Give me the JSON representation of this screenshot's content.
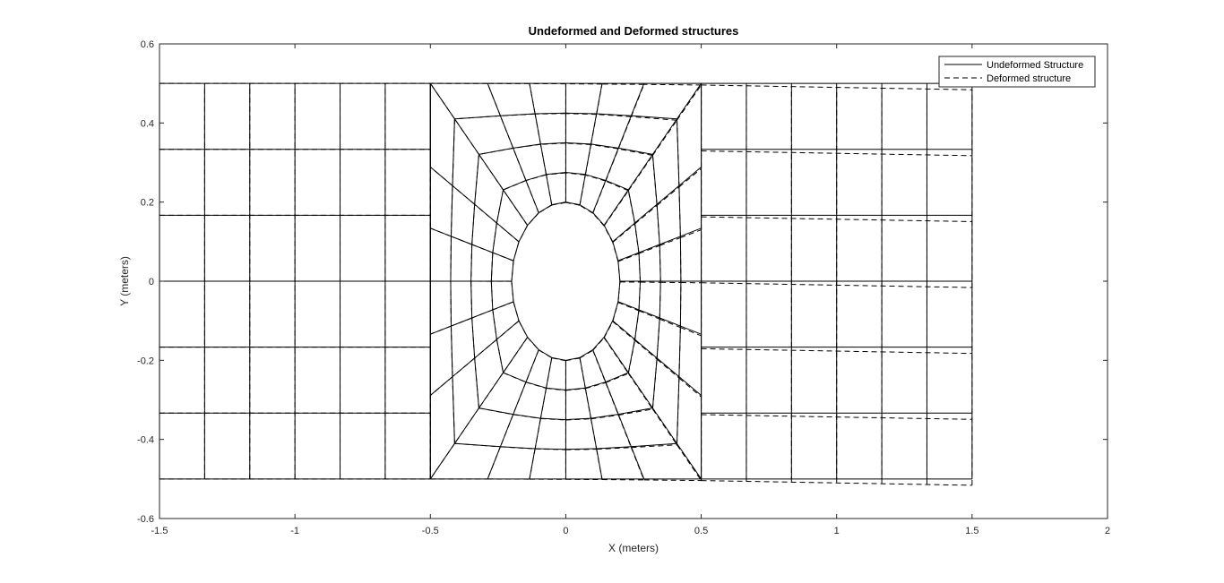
{
  "chart_data": {
    "type": "line",
    "title": "Undeformed and Deformed structures",
    "xlabel": "X (meters)",
    "ylabel": "Y (meters)",
    "xlim": [
      -1.5,
      2
    ],
    "ylim": [
      -0.6,
      0.6
    ],
    "xticks": [
      -1.5,
      -1,
      -0.5,
      0,
      0.5,
      1,
      1.5,
      2
    ],
    "yticks": [
      -0.6,
      -0.4,
      -0.2,
      0,
      0.2,
      0.4,
      0.6
    ],
    "xtick_labels": [
      "-1.5",
      "-1",
      "-0.5",
      "0",
      "0.5",
      "1",
      "1.5",
      "2"
    ],
    "ytick_labels": [
      "-0.6",
      "-0.4",
      "-0.2",
      "0",
      "0.2",
      "0.4",
      "0.6"
    ],
    "grid": false,
    "legend_position": "top-right",
    "series": [
      {
        "name": "Undeformed Structure",
        "style": "solid",
        "color": "#000000"
      },
      {
        "name": "Deformed structure",
        "style": "dashed",
        "color": "#000000"
      }
    ],
    "mesh": {
      "left_block": {
        "x_range": [
          -1.5,
          -0.5
        ],
        "y_range": [
          -0.5,
          0.5
        ],
        "x_divisions": 6,
        "y_divisions": 6
      },
      "right_block": {
        "x_range": [
          0.5,
          1.5
        ],
        "y_range": [
          -0.5,
          0.5
        ],
        "x_divisions": 6,
        "y_divisions": 6
      },
      "center_block": {
        "x_range": [
          -0.5,
          0.5
        ],
        "y_range": [
          -0.5,
          0.5
        ],
        "hole_radius_x": 0.2,
        "hole_radius_y": 0.2,
        "ring_count": 3,
        "radial_spokes": 24
      },
      "deformation": {
        "right_edge_shear_dy": -0.016
      }
    }
  }
}
